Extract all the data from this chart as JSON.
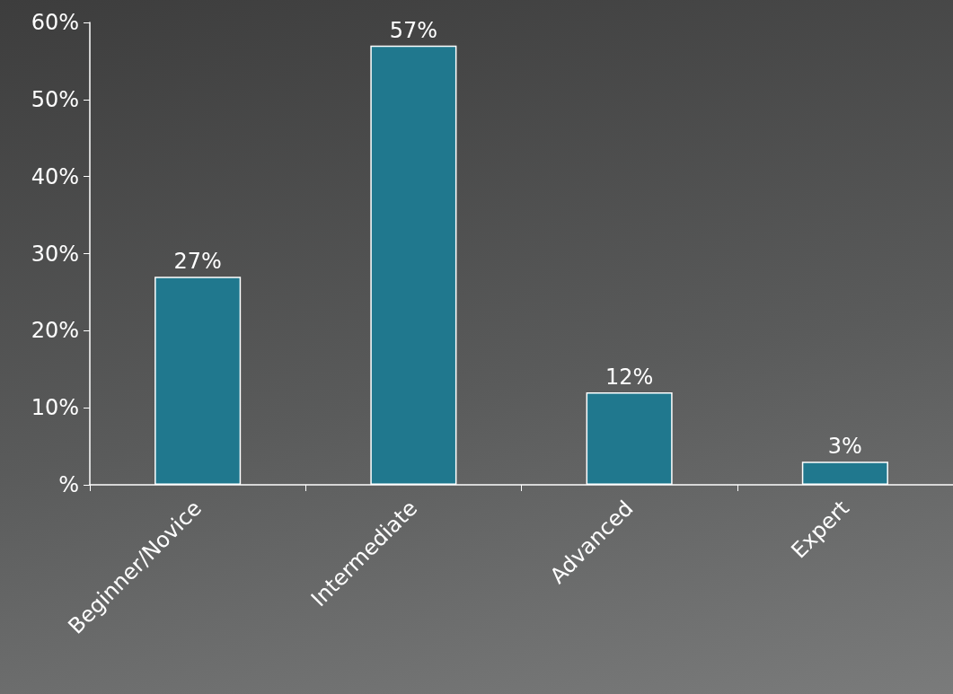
{
  "chart_data": {
    "type": "bar",
    "categories": [
      "Beginner/Novice",
      "Intermediate",
      "Advanced",
      "Expert"
    ],
    "values": [
      27,
      57,
      12,
      3
    ],
    "value_labels": [
      "27%",
      "57%",
      "12%",
      "3%"
    ],
    "color": "#20788e",
    "ylim": [
      0,
      60
    ],
    "yticks": [
      {
        "value": 0,
        "label": "%"
      },
      {
        "value": 10,
        "label": "10%"
      },
      {
        "value": 20,
        "label": "20%"
      },
      {
        "value": 30,
        "label": "30%"
      },
      {
        "value": 40,
        "label": "40%"
      },
      {
        "value": 50,
        "label": "50%"
      },
      {
        "value": 60,
        "label": "60%"
      }
    ],
    "grid": false
  }
}
